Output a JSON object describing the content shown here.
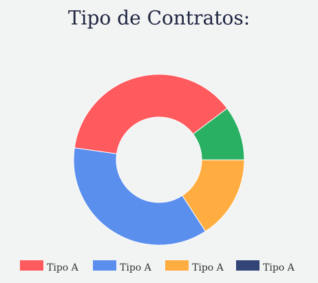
{
  "chart_data": {
    "type": "donut",
    "title": "Tipo de Contratos:",
    "categories": [
      "Tipo A",
      "Tipo A",
      "Tipo A",
      "Tipo A",
      null
    ],
    "values": [
      37.5,
      36.4,
      15.8,
      0,
      10.3
    ],
    "colors": [
      "#ff5a5e",
      "#5b8fee",
      "#ffac40",
      "#334477",
      "#29b063"
    ],
    "legend": "bottom"
  }
}
